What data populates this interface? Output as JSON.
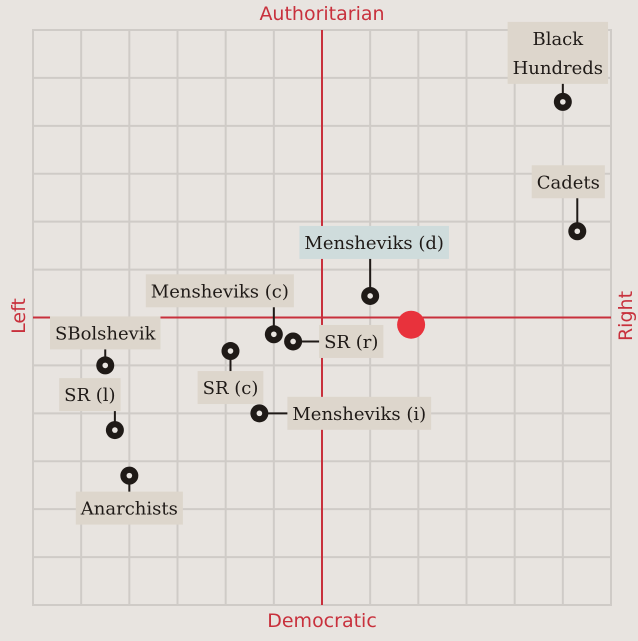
{
  "chart_data": {
    "type": "scatter",
    "axes": {
      "top": "Authoritarian",
      "bottom": "Democratic",
      "left": "Left",
      "right": "Right"
    },
    "xlim": [
      -6,
      6
    ],
    "ylim": [
      -6,
      6
    ],
    "grid": true,
    "colors": {
      "background": "#e8e4e0",
      "grid": "#cfcbc7",
      "axis": "#c8303c",
      "label_bg": "#ddd6cc",
      "highlight_label_bg": "#cfdcdc",
      "point": "#1f1a17",
      "user_point": "#e8323c"
    },
    "points": [
      {
        "name": "Black Hundreds",
        "lines": [
          "Black",
          "Hundreds"
        ],
        "x": 5.0,
        "y": 4.5
      },
      {
        "name": "Cadets",
        "lines": [
          "Cadets"
        ],
        "x": 5.3,
        "y": 1.8
      },
      {
        "name": "Mensheviks (d)",
        "lines": [
          "Mensheviks (d)"
        ],
        "x": 1.0,
        "y": 0.45,
        "highlight": true
      },
      {
        "name": "Mensheviks (c)",
        "lines": [
          "Mensheviks (c)"
        ],
        "x": -1.0,
        "y": -0.35
      },
      {
        "name": "SR (r)",
        "lines": [
          "SR (r)"
        ],
        "x": -0.6,
        "y": -0.5
      },
      {
        "name": "SR (c)",
        "lines": [
          "SR (c)"
        ],
        "x": -1.9,
        "y": -0.7
      },
      {
        "name": "SBolshevik",
        "lines": [
          "SBolshevik"
        ],
        "x": -4.5,
        "y": -1.0
      },
      {
        "name": "SR (l)",
        "lines": [
          "SR (l)"
        ],
        "x": -4.3,
        "y": -2.35
      },
      {
        "name": "Mensheviks (i)",
        "lines": [
          "Mensheviks (i)"
        ],
        "x": -1.3,
        "y": -2.0
      },
      {
        "name": "Anarchists",
        "lines": [
          "Anarchists"
        ],
        "x": -4.0,
        "y": -3.3
      }
    ],
    "user_point": {
      "x": 1.85,
      "y": -0.15
    }
  }
}
